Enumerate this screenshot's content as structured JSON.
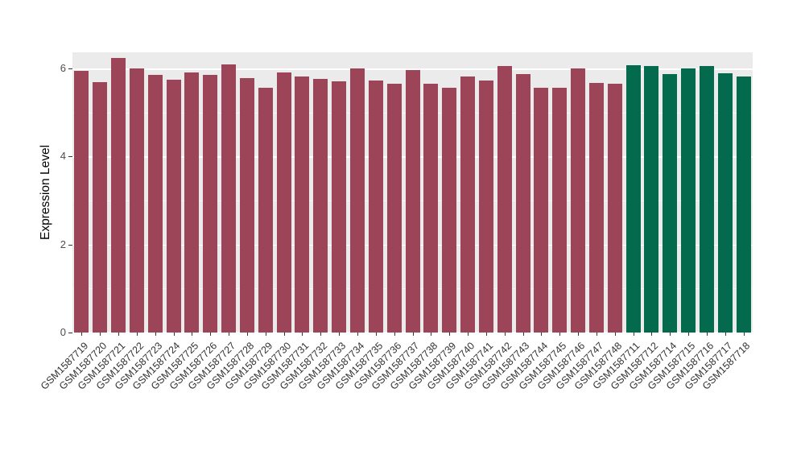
{
  "chart_data": {
    "type": "bar",
    "title": "",
    "xlabel": "",
    "ylabel": "Expression Level",
    "ylim": [
      0,
      6.37
    ],
    "yticks": [
      0,
      2,
      4,
      6
    ],
    "yticks_minor": [
      1,
      3,
      5
    ],
    "grid": true,
    "legend_position": "none",
    "panel_bg": "#EBEBEB",
    "grid_color": "#FFFFFF",
    "group_colors": {
      "control": "#9D4558",
      "treatment": "#046A4E"
    },
    "bars": [
      {
        "label": "GSM1587719",
        "value": 5.95,
        "group": "control"
      },
      {
        "label": "GSM1587720",
        "value": 5.7,
        "group": "control"
      },
      {
        "label": "GSM1587721",
        "value": 6.25,
        "group": "control"
      },
      {
        "label": "GSM1587722",
        "value": 6.0,
        "group": "control"
      },
      {
        "label": "GSM1587723",
        "value": 5.85,
        "group": "control"
      },
      {
        "label": "GSM1587724",
        "value": 5.75,
        "group": "control"
      },
      {
        "label": "GSM1587725",
        "value": 5.92,
        "group": "control"
      },
      {
        "label": "GSM1587726",
        "value": 5.86,
        "group": "control"
      },
      {
        "label": "GSM1587727",
        "value": 6.1,
        "group": "control"
      },
      {
        "label": "GSM1587728",
        "value": 5.78,
        "group": "control"
      },
      {
        "label": "GSM1587729",
        "value": 5.57,
        "group": "control"
      },
      {
        "label": "GSM1587730",
        "value": 5.92,
        "group": "control"
      },
      {
        "label": "GSM1587731",
        "value": 5.82,
        "group": "control"
      },
      {
        "label": "GSM1587732",
        "value": 5.76,
        "group": "control"
      },
      {
        "label": "GSM1587733",
        "value": 5.72,
        "group": "control"
      },
      {
        "label": "GSM1587734",
        "value": 6.0,
        "group": "control"
      },
      {
        "label": "GSM1587735",
        "value": 5.73,
        "group": "control"
      },
      {
        "label": "GSM1587736",
        "value": 5.65,
        "group": "control"
      },
      {
        "label": "GSM1587737",
        "value": 5.97,
        "group": "control"
      },
      {
        "label": "GSM1587738",
        "value": 5.66,
        "group": "control"
      },
      {
        "label": "GSM1587739",
        "value": 5.57,
        "group": "control"
      },
      {
        "label": "GSM1587740",
        "value": 5.83,
        "group": "control"
      },
      {
        "label": "GSM1587741",
        "value": 5.73,
        "group": "control"
      },
      {
        "label": "GSM1587742",
        "value": 6.05,
        "group": "control"
      },
      {
        "label": "GSM1587743",
        "value": 5.88,
        "group": "control"
      },
      {
        "label": "GSM1587744",
        "value": 5.56,
        "group": "control"
      },
      {
        "label": "GSM1587745",
        "value": 5.57,
        "group": "control"
      },
      {
        "label": "GSM1587746",
        "value": 6.0,
        "group": "control"
      },
      {
        "label": "GSM1587747",
        "value": 5.68,
        "group": "control"
      },
      {
        "label": "GSM1587748",
        "value": 5.66,
        "group": "control"
      },
      {
        "label": "GSM1587711",
        "value": 6.07,
        "group": "treatment"
      },
      {
        "label": "GSM1587712",
        "value": 6.05,
        "group": "treatment"
      },
      {
        "label": "GSM1587714",
        "value": 5.87,
        "group": "treatment"
      },
      {
        "label": "GSM1587715",
        "value": 6.0,
        "group": "treatment"
      },
      {
        "label": "GSM1587716",
        "value": 6.05,
        "group": "treatment"
      },
      {
        "label": "GSM1587717",
        "value": 5.9,
        "group": "treatment"
      },
      {
        "label": "GSM1587718",
        "value": 5.83,
        "group": "treatment"
      }
    ]
  }
}
